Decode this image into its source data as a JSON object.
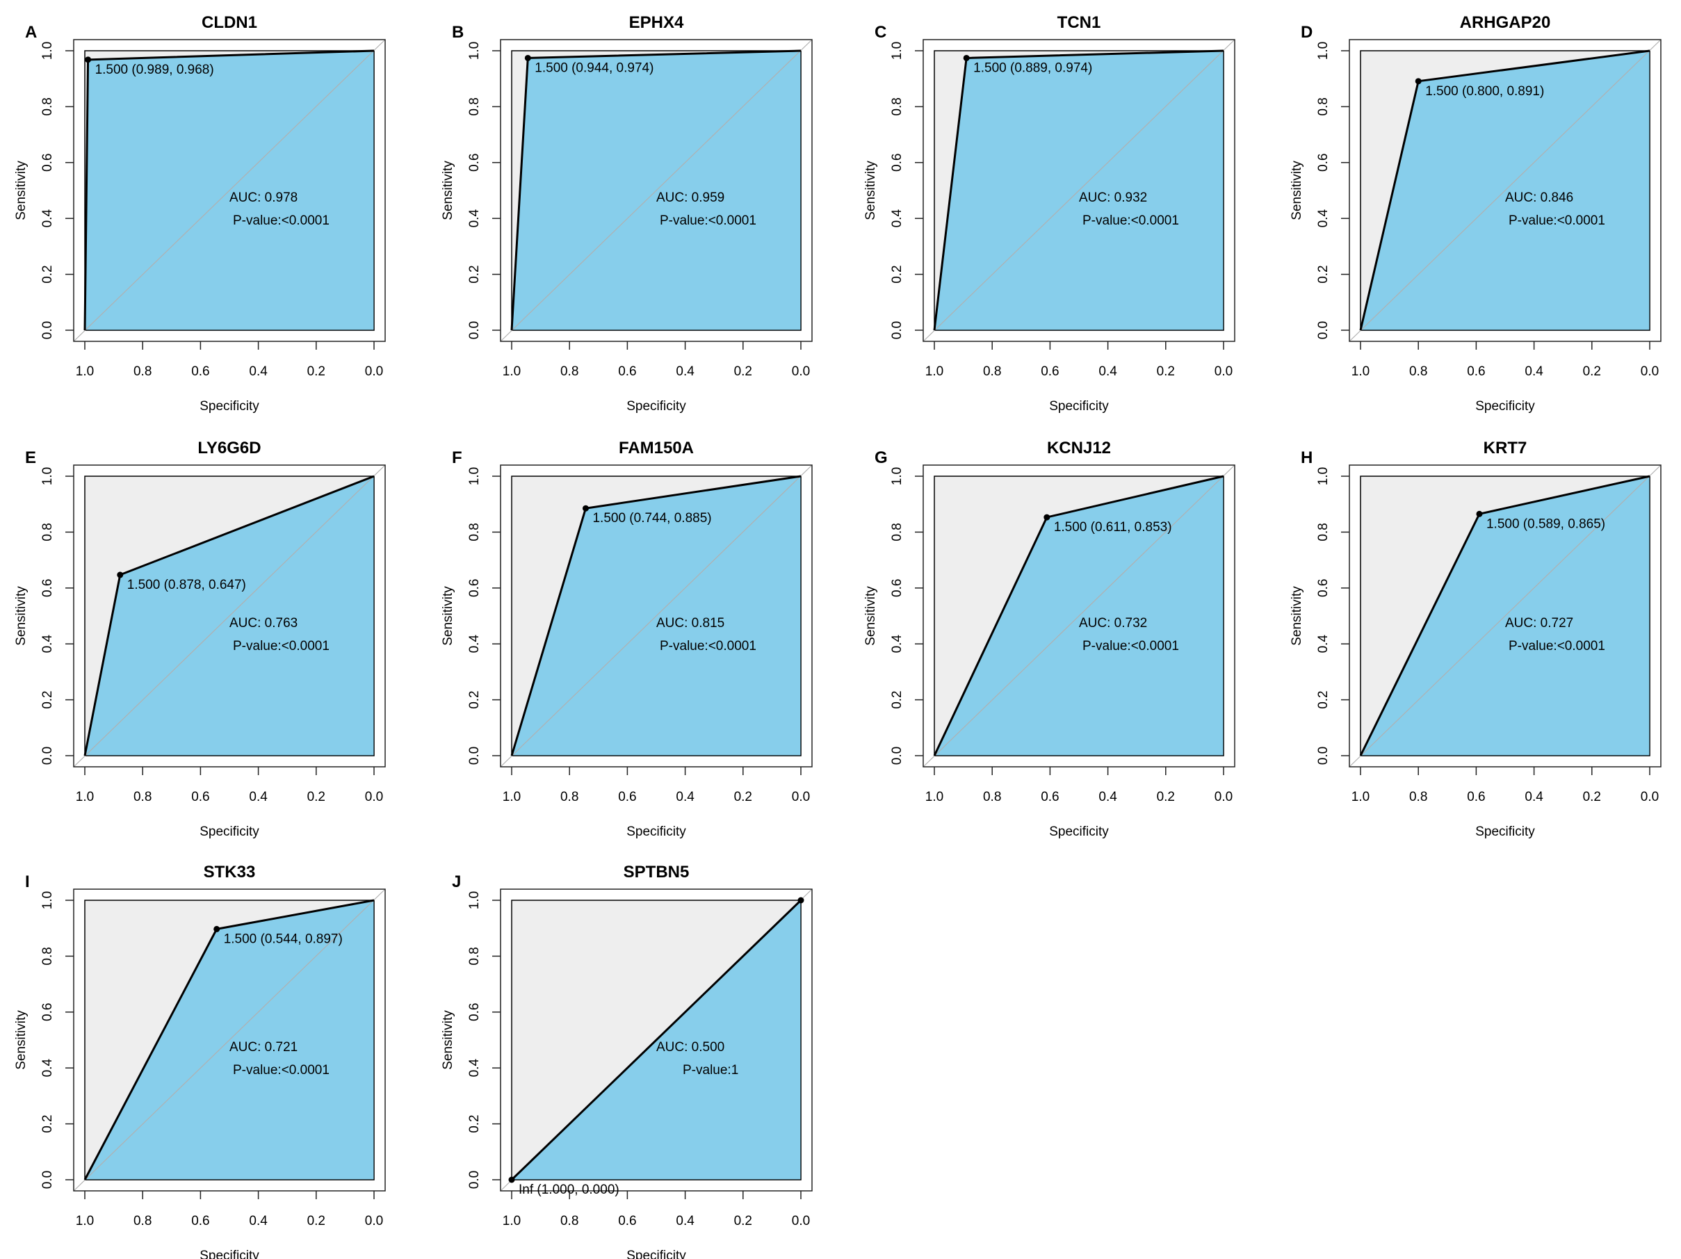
{
  "colors": {
    "fill_under_curve": "#87CEEB",
    "fill_above_curve": "#EEEEEE",
    "curve": "#000000",
    "diagonal": "#B0B0B0"
  },
  "chart_data": [
    {
      "type": "line",
      "panel": "A",
      "title": "CLDN1",
      "xlabel": "Specificity",
      "ylabel": "Sensitivity",
      "xlim": [
        1,
        0
      ],
      "ylim": [
        0,
        1
      ],
      "x_ticks": [
        "1.0",
        "0.8",
        "0.6",
        "0.4",
        "0.2",
        "0.0"
      ],
      "y_ticks": [
        "0.0",
        "0.2",
        "0.4",
        "0.6",
        "0.8",
        "1.0"
      ],
      "points": [
        [
          1,
          0
        ],
        [
          0.989,
          0.968
        ],
        [
          0,
          1
        ]
      ],
      "marked_points": [
        [
          0.989,
          0.968
        ]
      ],
      "threshold_label": "1.500 (0.989, 0.968)",
      "auc_label": "AUC: 0.978",
      "p_label": "P-value:<0.0001"
    },
    {
      "type": "line",
      "panel": "B",
      "title": "EPHX4",
      "xlabel": "Specificity",
      "ylabel": "Sensitivity",
      "xlim": [
        1,
        0
      ],
      "ylim": [
        0,
        1
      ],
      "x_ticks": [
        "1.0",
        "0.8",
        "0.6",
        "0.4",
        "0.2",
        "0.0"
      ],
      "y_ticks": [
        "0.0",
        "0.2",
        "0.4",
        "0.6",
        "0.8",
        "1.0"
      ],
      "points": [
        [
          1,
          0
        ],
        [
          0.944,
          0.974
        ],
        [
          0,
          1
        ]
      ],
      "marked_points": [
        [
          0.944,
          0.974
        ]
      ],
      "threshold_label": "1.500 (0.944, 0.974)",
      "auc_label": "AUC: 0.959",
      "p_label": "P-value:<0.0001"
    },
    {
      "type": "line",
      "panel": "C",
      "title": "TCN1",
      "xlabel": "Specificity",
      "ylabel": "Sensitivity",
      "xlim": [
        1,
        0
      ],
      "ylim": [
        0,
        1
      ],
      "x_ticks": [
        "1.0",
        "0.8",
        "0.6",
        "0.4",
        "0.2",
        "0.0"
      ],
      "y_ticks": [
        "0.0",
        "0.2",
        "0.4",
        "0.6",
        "0.8",
        "1.0"
      ],
      "points": [
        [
          1,
          0
        ],
        [
          0.889,
          0.974
        ],
        [
          0,
          1
        ]
      ],
      "marked_points": [
        [
          0.889,
          0.974
        ]
      ],
      "threshold_label": "1.500 (0.889, 0.974)",
      "auc_label": "AUC: 0.932",
      "p_label": "P-value:<0.0001"
    },
    {
      "type": "line",
      "panel": "D",
      "title": "ARHGAP20",
      "xlabel": "Specificity",
      "ylabel": "Sensitivity",
      "xlim": [
        1,
        0
      ],
      "ylim": [
        0,
        1
      ],
      "x_ticks": [
        "1.0",
        "0.8",
        "0.6",
        "0.4",
        "0.2",
        "0.0"
      ],
      "y_ticks": [
        "0.0",
        "0.2",
        "0.4",
        "0.6",
        "0.8",
        "1.0"
      ],
      "points": [
        [
          1,
          0
        ],
        [
          0.8,
          0.891
        ],
        [
          0,
          1
        ]
      ],
      "marked_points": [
        [
          0.8,
          0.891
        ]
      ],
      "threshold_label": "1.500 (0.800, 0.891)",
      "auc_label": "AUC: 0.846",
      "p_label": "P-value:<0.0001"
    },
    {
      "type": "line",
      "panel": "E",
      "title": "LY6G6D",
      "xlabel": "Specificity",
      "ylabel": "Sensitivity",
      "xlim": [
        1,
        0
      ],
      "ylim": [
        0,
        1
      ],
      "x_ticks": [
        "1.0",
        "0.8",
        "0.6",
        "0.4",
        "0.2",
        "0.0"
      ],
      "y_ticks": [
        "0.0",
        "0.2",
        "0.4",
        "0.6",
        "0.8",
        "1.0"
      ],
      "points": [
        [
          1,
          0
        ],
        [
          0.878,
          0.647
        ],
        [
          0,
          1
        ]
      ],
      "marked_points": [
        [
          0.878,
          0.647
        ]
      ],
      "threshold_label": "1.500 (0.878, 0.647)",
      "auc_label": "AUC: 0.763",
      "p_label": "P-value:<0.0001"
    },
    {
      "type": "line",
      "panel": "F",
      "title": "FAM150A",
      "xlabel": "Specificity",
      "ylabel": "Sensitivity",
      "xlim": [
        1,
        0
      ],
      "ylim": [
        0,
        1
      ],
      "x_ticks": [
        "1.0",
        "0.8",
        "0.6",
        "0.4",
        "0.2",
        "0.0"
      ],
      "y_ticks": [
        "0.0",
        "0.2",
        "0.4",
        "0.6",
        "0.8",
        "1.0"
      ],
      "points": [
        [
          1,
          0
        ],
        [
          0.744,
          0.885
        ],
        [
          0,
          1
        ]
      ],
      "marked_points": [
        [
          0.744,
          0.885
        ]
      ],
      "threshold_label": "1.500 (0.744, 0.885)",
      "auc_label": "AUC: 0.815",
      "p_label": "P-value:<0.0001"
    },
    {
      "type": "line",
      "panel": "G",
      "title": "KCNJ12",
      "xlabel": "Specificity",
      "ylabel": "Sensitivity",
      "xlim": [
        1,
        0
      ],
      "ylim": [
        0,
        1
      ],
      "x_ticks": [
        "1.0",
        "0.8",
        "0.6",
        "0.4",
        "0.2",
        "0.0"
      ],
      "y_ticks": [
        "0.0",
        "0.2",
        "0.4",
        "0.6",
        "0.8",
        "1.0"
      ],
      "points": [
        [
          1,
          0
        ],
        [
          0.611,
          0.853
        ],
        [
          0,
          1
        ]
      ],
      "marked_points": [
        [
          0.611,
          0.853
        ]
      ],
      "threshold_label": "1.500 (0.611, 0.853)",
      "auc_label": "AUC: 0.732",
      "p_label": "P-value:<0.0001"
    },
    {
      "type": "line",
      "panel": "H",
      "title": "KRT7",
      "xlabel": "Specificity",
      "ylabel": "Sensitivity",
      "xlim": [
        1,
        0
      ],
      "ylim": [
        0,
        1
      ],
      "x_ticks": [
        "1.0",
        "0.8",
        "0.6",
        "0.4",
        "0.2",
        "0.0"
      ],
      "y_ticks": [
        "0.0",
        "0.2",
        "0.4",
        "0.6",
        "0.8",
        "1.0"
      ],
      "points": [
        [
          1,
          0
        ],
        [
          0.589,
          0.865
        ],
        [
          0,
          1
        ]
      ],
      "marked_points": [
        [
          0.589,
          0.865
        ]
      ],
      "threshold_label": "1.500 (0.589, 0.865)",
      "auc_label": "AUC: 0.727",
      "p_label": "P-value:<0.0001"
    },
    {
      "type": "line",
      "panel": "I",
      "title": "STK33",
      "xlabel": "Specificity",
      "ylabel": "Sensitivity",
      "xlim": [
        1,
        0
      ],
      "ylim": [
        0,
        1
      ],
      "x_ticks": [
        "1.0",
        "0.8",
        "0.6",
        "0.4",
        "0.2",
        "0.0"
      ],
      "y_ticks": [
        "0.0",
        "0.2",
        "0.4",
        "0.6",
        "0.8",
        "1.0"
      ],
      "points": [
        [
          1,
          0
        ],
        [
          0.544,
          0.897
        ],
        [
          0,
          1
        ]
      ],
      "marked_points": [
        [
          0.544,
          0.897
        ]
      ],
      "threshold_label": "1.500 (0.544, 0.897)",
      "auc_label": "AUC: 0.721",
      "p_label": "P-value:<0.0001"
    },
    {
      "type": "line",
      "panel": "J",
      "title": "SPTBN5",
      "xlabel": "Specificity",
      "ylabel": "Sensitivity",
      "xlim": [
        1,
        0
      ],
      "ylim": [
        0,
        1
      ],
      "x_ticks": [
        "1.0",
        "0.8",
        "0.6",
        "0.4",
        "0.2",
        "0.0"
      ],
      "y_ticks": [
        "0.0",
        "0.2",
        "0.4",
        "0.6",
        "0.8",
        "1.0"
      ],
      "points": [
        [
          1,
          0
        ],
        [
          0,
          1
        ]
      ],
      "marked_points": [
        [
          1,
          0
        ],
        [
          0,
          1
        ]
      ],
      "threshold_label": "Inf (1.000, 0.000)",
      "auc_label": "AUC: 0.500",
      "p_label": "P-value:1"
    }
  ]
}
